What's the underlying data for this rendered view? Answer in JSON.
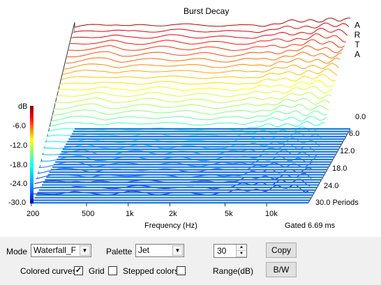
{
  "window": {
    "title": "Burst Decay"
  },
  "brand_letters": [
    "A",
    "R",
    "T",
    "A"
  ],
  "colorbar": {
    "unit": "dB",
    "ticks": [
      "-6.0",
      "-12.0",
      "-18.0",
      "-24.0",
      "-30.0"
    ]
  },
  "chart_data": {
    "type": "area",
    "title": "Burst Decay",
    "xlabel": "Frequency (Hz)",
    "x_scale": "log",
    "xlim": [
      200,
      20000
    ],
    "x_ticks": [
      "200",
      "500",
      "1k",
      "2k",
      "5k",
      "10k"
    ],
    "x_tick_values": [
      200,
      500,
      1000,
      2000,
      5000,
      10000
    ],
    "zlabel": "dB",
    "zlim": [
      -30,
      0
    ],
    "depth_axis_ticks": [
      "0.0",
      "6.0",
      "12.0",
      "18.0",
      "24.0",
      "30.0 Periods"
    ],
    "depth_range_periods": [
      0,
      30
    ],
    "palette": "Jet",
    "gate_note": "Gated 6.69 ms",
    "frequency_points": [
      200,
      300,
      400,
      500,
      700,
      1000,
      1500,
      2000,
      3000,
      5000,
      7000,
      8000,
      9000,
      12000,
      16000,
      20000
    ],
    "front_curve_db": [
      -2.5,
      -1.8,
      -1.5,
      -2.2,
      -2.0,
      -1.6,
      -2.0,
      -1.8,
      -2.2,
      -1.7,
      -1.2,
      -1.0,
      -0.8,
      -0.3,
      -0.5,
      -0.8
    ],
    "decay_rate_db_per_period": 0.85
  },
  "controls": {
    "mode_label": "Mode",
    "mode_value": "Waterfall_F",
    "palette_label": "Palette",
    "palette_value": "Jet",
    "range_value": "30",
    "range_label": "Range(dB)",
    "copy_label": "Copy",
    "bw_label": "B/W",
    "colored_curves_label": "Colored curves",
    "colored_curves_checked": true,
    "grid_label": "Grid",
    "grid_checked": false,
    "stepped_colors_label": "Stepped colors",
    "stepped_colors_checked": false
  }
}
